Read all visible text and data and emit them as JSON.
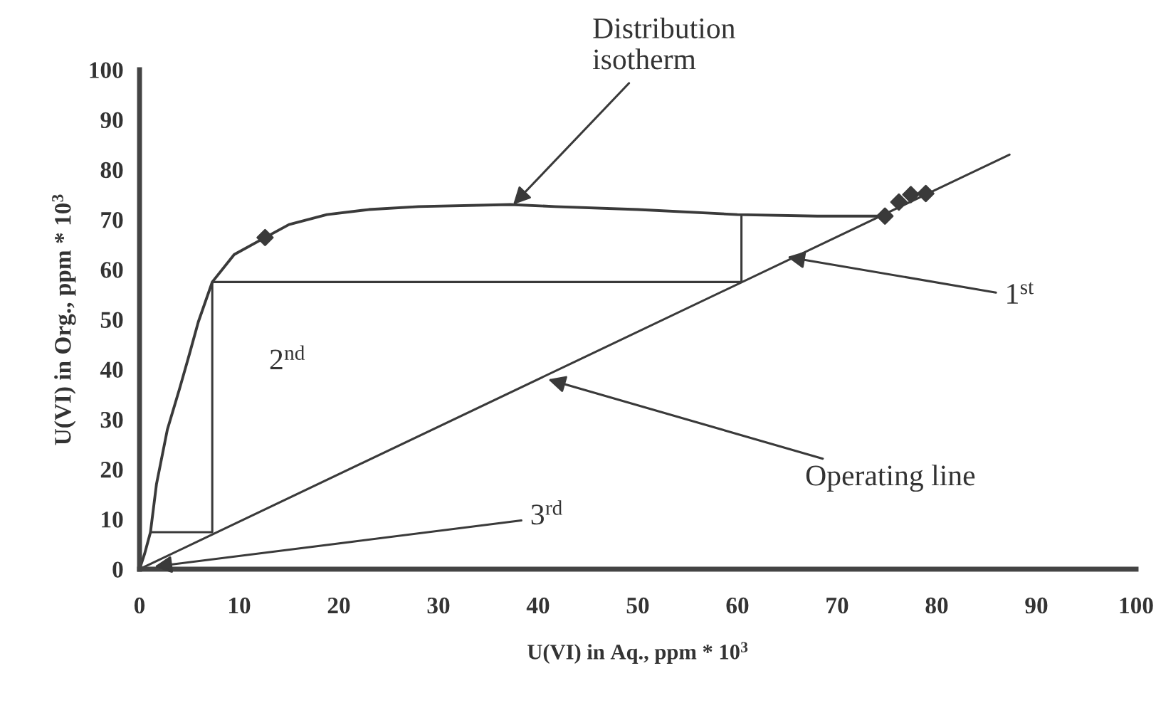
{
  "chart_data": {
    "type": "line",
    "xlabel": "U(VI) in Aq., ppm * 10$^{3}$",
    "ylabel": "U(VI) in Org., ppm * 10$^{3}$",
    "series": [
      {
        "color": "#3a3a3a",
        "x": [
          0,
          0.5,
          1.1,
          1.7,
          2.8,
          4,
          5,
          5.9,
          7.3,
          9.5,
          12.6,
          15,
          18.8,
          23,
          28,
          37.2,
          41.7,
          50,
          60,
          68,
          73.8,
          74.8
        ],
        "values": [
          0,
          3,
          7.4,
          17,
          28,
          36,
          43,
          49.5,
          57.5,
          63,
          66.4,
          69,
          71,
          72,
          72.6,
          73,
          72.6,
          72,
          71,
          70.7,
          70.7,
          70.7
        ]
      },
      {
        "color": "#3a3a3a",
        "x": [
          0,
          87.3
        ],
        "values": [
          0,
          83
        ]
      },
      {
        "color": "#3a3a3a",
        "x": [
          60.4,
          60.4,
          7.3,
          7.3,
          1.1
        ],
        "values": [
          70.7,
          57.5,
          57.5,
          7.4,
          7.4
        ]
      },
      {
        "type": "scatter",
        "color": "#3a3a3a",
        "marker": "diamond",
        "x": [
          12.6,
          74.8,
          76.2,
          77.4,
          78.9
        ],
        "values": [
          66.4,
          70.7,
          73.5,
          75,
          75.2
        ]
      }
    ],
    "xlim": [
      0,
      100
    ],
    "ylim": [
      0,
      100
    ],
    "xticks": [
      0,
      10,
      20,
      30,
      40,
      50,
      60,
      70,
      80,
      90,
      100
    ],
    "yticks": [
      0,
      10,
      20,
      30,
      40,
      50,
      60,
      70,
      80,
      90,
      100
    ],
    "grid": false,
    "legend": false,
    "annotations": [
      {
        "text": "Distribution\nisotherm",
        "x": 37.5,
        "y": 73
      },
      {
        "text": "1$^{st}$",
        "x": 65,
        "y": 62.5
      },
      {
        "text": "Operating line",
        "x": 41,
        "y": 38
      },
      {
        "text": "3$^{rd}$",
        "x": 1.5,
        "y": 0.5
      },
      "2$^{nd}$"
    ]
  }
}
